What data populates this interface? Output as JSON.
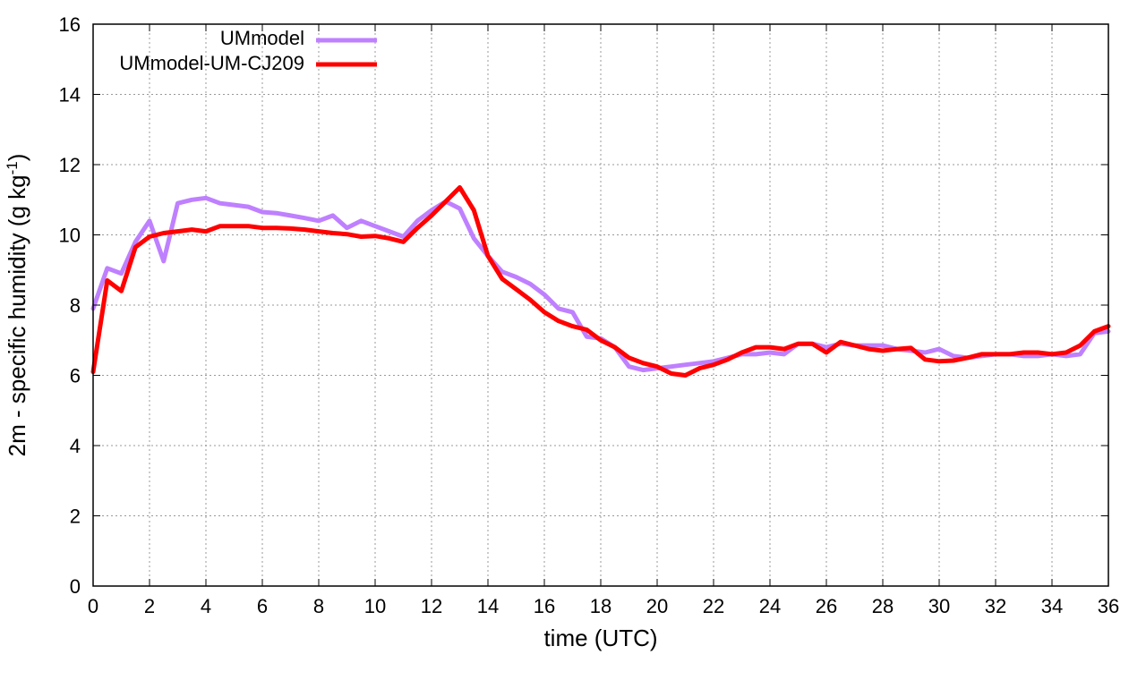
{
  "chart_data": {
    "type": "line",
    "title": "",
    "xlabel": "time (UTC)",
    "ylabel_main": "2m - specific humidity (g kg",
    "ylabel_sup": "-1",
    "ylabel_close": ")",
    "xlim": [
      0,
      36
    ],
    "ylim": [
      0,
      16
    ],
    "x_ticks": [
      "0",
      "2",
      "4",
      "6",
      "8",
      "10",
      "12",
      "14",
      "16",
      "18",
      "20",
      "22",
      "24",
      "26",
      "28",
      "30",
      "32",
      "34",
      "36"
    ],
    "y_ticks": [
      "0",
      "2",
      "4",
      "6",
      "8",
      "10",
      "12",
      "14",
      "16"
    ],
    "grid": true,
    "legend_position": "top-left",
    "x": [
      0,
      0.5,
      1,
      1.5,
      2,
      2.5,
      3,
      3.5,
      4,
      4.5,
      5,
      5.5,
      6,
      6.5,
      7,
      7.5,
      8,
      8.5,
      9,
      9.5,
      10,
      10.5,
      11,
      11.5,
      12,
      12.5,
      13,
      13.5,
      14,
      14.5,
      15,
      15.5,
      16,
      16.5,
      17,
      17.5,
      18,
      18.5,
      19,
      19.5,
      20,
      20.5,
      21,
      21.5,
      22,
      22.5,
      23,
      23.5,
      24,
      24.5,
      25,
      25.5,
      26,
      26.5,
      27,
      27.5,
      28,
      28.5,
      29,
      29.5,
      30,
      30.5,
      31,
      31.5,
      32,
      32.5,
      33,
      33.5,
      34,
      34.5,
      35,
      35.5,
      36
    ],
    "series": [
      {
        "name": "UMmodel",
        "color": "#bf80ff",
        "values": [
          7.9,
          9.05,
          8.9,
          9.8,
          10.4,
          9.25,
          10.9,
          11.0,
          11.05,
          10.9,
          10.85,
          10.8,
          10.65,
          10.62,
          10.55,
          10.48,
          10.4,
          10.55,
          10.2,
          10.4,
          10.25,
          10.1,
          9.95,
          10.4,
          10.7,
          10.95,
          10.75,
          9.9,
          9.4,
          8.95,
          8.8,
          8.6,
          8.3,
          7.9,
          7.8,
          7.1,
          7.05,
          6.8,
          6.25,
          6.15,
          6.2,
          6.25,
          6.3,
          6.35,
          6.4,
          6.5,
          6.6,
          6.6,
          6.65,
          6.6,
          6.9,
          6.9,
          6.8,
          6.9,
          6.85,
          6.85,
          6.85,
          6.75,
          6.7,
          6.65,
          6.75,
          6.55,
          6.5,
          6.55,
          6.6,
          6.6,
          6.55,
          6.55,
          6.6,
          6.55,
          6.6,
          7.2,
          7.25
        ]
      },
      {
        "name": "UMmodel-UM-CJ209",
        "color": "#ff0000",
        "values": [
          6.1,
          8.7,
          8.4,
          9.65,
          9.95,
          10.05,
          10.1,
          10.15,
          10.1,
          10.25,
          10.25,
          10.25,
          10.2,
          10.2,
          10.18,
          10.15,
          10.1,
          10.05,
          10.02,
          9.95,
          9.97,
          9.9,
          9.8,
          10.2,
          10.55,
          10.95,
          11.35,
          10.7,
          9.4,
          8.75,
          8.45,
          8.15,
          7.8,
          7.55,
          7.4,
          7.3,
          7.0,
          6.8,
          6.5,
          6.35,
          6.25,
          6.05,
          6.0,
          6.2,
          6.3,
          6.45,
          6.65,
          6.8,
          6.8,
          6.75,
          6.9,
          6.9,
          6.65,
          6.95,
          6.85,
          6.75,
          6.7,
          6.75,
          6.78,
          6.45,
          6.4,
          6.42,
          6.5,
          6.6,
          6.6,
          6.6,
          6.65,
          6.65,
          6.6,
          6.65,
          6.85,
          7.25,
          7.4
        ]
      }
    ]
  }
}
